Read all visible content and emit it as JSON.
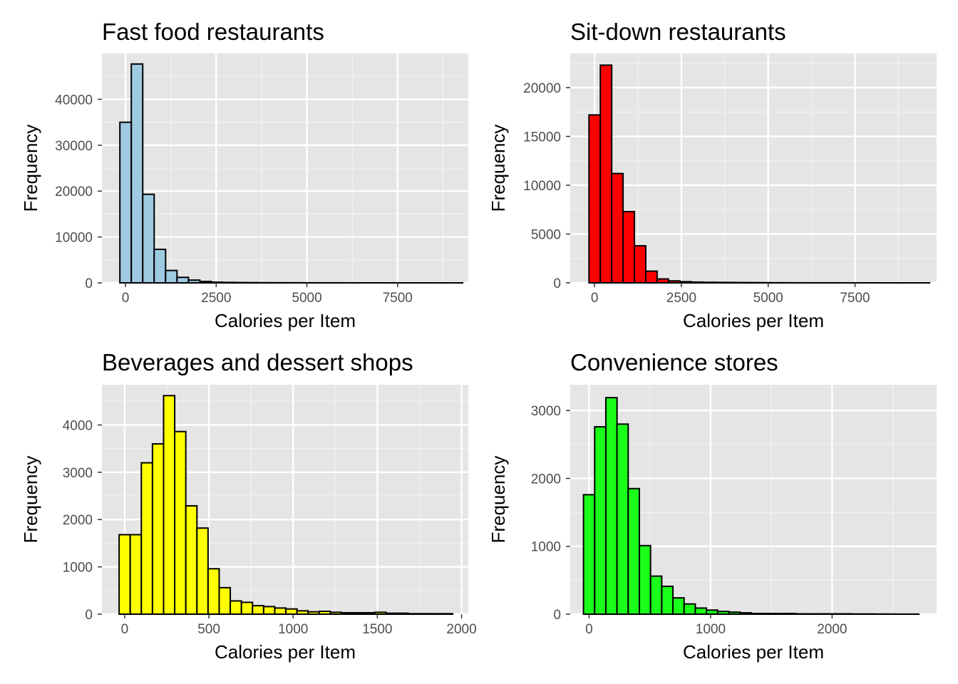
{
  "chart_data": [
    {
      "type": "bar",
      "title": "Fast food restaurants",
      "xlabel": "Calories per Item",
      "ylabel": "Frequency",
      "fill": "#9ecae1",
      "stroke": "#000000",
      "xlim": [
        -650,
        9450
      ],
      "ylim": [
        0,
        50000
      ],
      "xticks": [
        0,
        2500,
        5000,
        7500
      ],
      "xtick_labels": [
        "0",
        "2500",
        "5000",
        "7500"
      ],
      "yticks": [
        0,
        10000,
        20000,
        30000,
        40000
      ],
      "ytick_labels": [
        "0",
        "10000",
        "20000",
        "30000",
        "40000"
      ],
      "bin_start": -155,
      "bin_width": 315,
      "values": [
        35000,
        47700,
        19300,
        7300,
        2700,
        1200,
        600,
        300,
        150,
        100,
        70,
        50,
        40,
        30,
        25,
        20,
        15,
        10,
        10,
        8,
        6,
        5,
        4,
        3,
        3,
        2,
        2,
        1,
        1,
        1
      ]
    },
    {
      "type": "bar",
      "title": "Sit-down restaurants",
      "xlabel": "Calories per Item",
      "ylabel": "Frequency",
      "fill": "#ff0000",
      "stroke": "#000000",
      "xlim": [
        -700,
        9850
      ],
      "ylim": [
        0,
        23500
      ],
      "xticks": [
        0,
        2500,
        5000,
        7500
      ],
      "xtick_labels": [
        "0",
        "2500",
        "5000",
        "7500"
      ],
      "yticks": [
        0,
        5000,
        10000,
        15000,
        20000
      ],
      "ytick_labels": [
        "0",
        "5000",
        "10000",
        "15000",
        "20000"
      ],
      "bin_start": -160,
      "bin_width": 327,
      "values": [
        17200,
        22300,
        11200,
        7300,
        3800,
        1200,
        400,
        200,
        120,
        80,
        60,
        50,
        40,
        30,
        25,
        20,
        15,
        10,
        8,
        6,
        5,
        4,
        3,
        3,
        2,
        2,
        1,
        1,
        1,
        1
      ]
    },
    {
      "type": "bar",
      "title": "Beverages and dessert shops",
      "xlabel": "Calories per Item",
      "ylabel": "Frequency",
      "fill": "#ffff00",
      "stroke": "#000000",
      "xlim": [
        -135,
        2040
      ],
      "ylim": [
        0,
        4850
      ],
      "xticks": [
        0,
        500,
        1000,
        1500,
        2000
      ],
      "xtick_labels": [
        "0",
        "500",
        "1000",
        "1500",
        "2000"
      ],
      "yticks": [
        0,
        1000,
        2000,
        3000,
        4000
      ],
      "ytick_labels": [
        "0",
        "1000",
        "2000",
        "3000",
        "4000"
      ],
      "bin_start": -33,
      "bin_width": 66,
      "values": [
        1680,
        1680,
        3200,
        3600,
        4620,
        3860,
        2290,
        1820,
        960,
        560,
        280,
        250,
        180,
        160,
        130,
        110,
        70,
        50,
        60,
        40,
        30,
        30,
        30,
        40,
        20,
        20,
        10,
        10,
        10,
        10
      ]
    },
    {
      "type": "bar",
      "title": "Convenience stores",
      "xlabel": "Calories per Item",
      "ylabel": "Frequency",
      "fill": "#1aff1a",
      "stroke": "#000000",
      "xlim": [
        -155,
        2860
      ],
      "ylim": [
        0,
        3380
      ],
      "xticks": [
        0,
        1000,
        2000
      ],
      "xtick_labels": [
        "0",
        "1000",
        "2000"
      ],
      "yticks": [
        0,
        1000,
        2000,
        3000
      ],
      "ytick_labels": [
        "0",
        "1000",
        "2000",
        "3000"
      ],
      "bin_start": -46,
      "bin_width": 92,
      "values": [
        1760,
        2760,
        3190,
        2800,
        1850,
        1010,
        560,
        410,
        240,
        150,
        90,
        60,
        40,
        30,
        20,
        10,
        10,
        10,
        10,
        5,
        5,
        5,
        5,
        5,
        3,
        3,
        2,
        2,
        1,
        1
      ]
    }
  ]
}
